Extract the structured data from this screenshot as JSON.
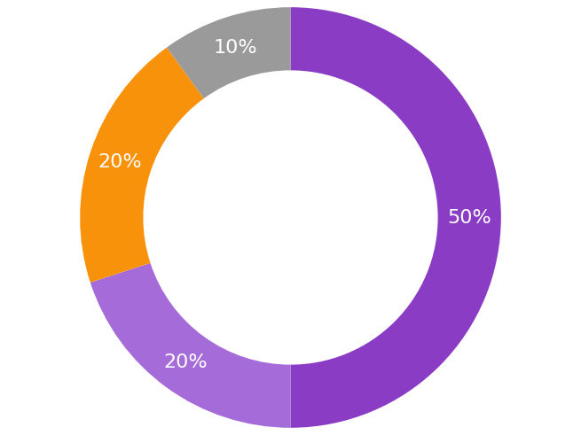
{
  "chart_data": {
    "type": "pie",
    "values": [
      50,
      20,
      20,
      10
    ],
    "value_labels": [
      "50%",
      "20%",
      "20%",
      "10%"
    ],
    "colors": [
      "#8a3cc4",
      "#a56bd8",
      "#f7920a",
      "#9a9a9a"
    ],
    "data_labels": true
  }
}
